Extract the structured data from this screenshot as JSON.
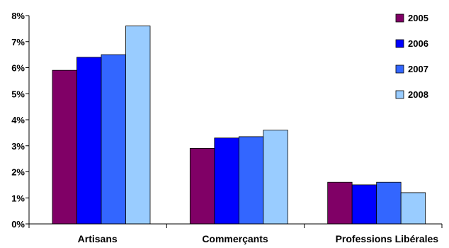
{
  "chart_data": {
    "type": "bar",
    "categories": [
      "Artisans",
      "Commerçants",
      "Professions Libérales"
    ],
    "series": [
      {
        "name": "2005",
        "color": "#800066",
        "values": [
          5.9,
          2.9,
          1.6
        ]
      },
      {
        "name": "2006",
        "color": "#0000FF",
        "values": [
          6.4,
          3.3,
          1.5
        ]
      },
      {
        "name": "2007",
        "color": "#3366FF",
        "values": [
          6.5,
          3.35,
          1.6
        ]
      },
      {
        "name": "2008",
        "color": "#99CCFF",
        "values": [
          7.6,
          3.6,
          1.2
        ]
      }
    ],
    "y_ticks": [
      "0%",
      "1%",
      "2%",
      "3%",
      "4%",
      "5%",
      "6%",
      "7%",
      "8%"
    ],
    "ylim": [
      0,
      8
    ],
    "y_unit": "%",
    "grid": false,
    "legend_position": "right"
  }
}
